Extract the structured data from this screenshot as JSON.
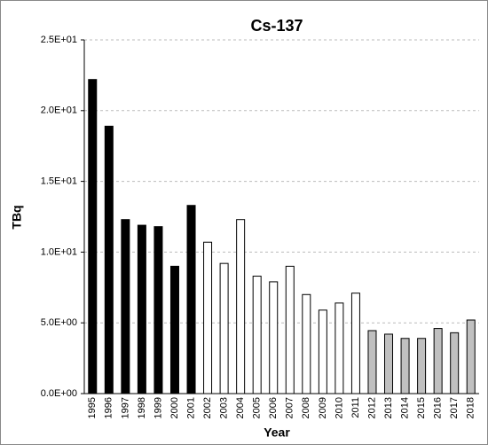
{
  "chart_data": {
    "type": "bar",
    "title": "Cs-137",
    "x_label": "Year",
    "y_label": "TBq",
    "categories": [
      "1995",
      "1996",
      "1997",
      "1998",
      "1999",
      "2000",
      "2001",
      "2002",
      "2003",
      "2004",
      "2005",
      "2006",
      "2007",
      "2008",
      "2009",
      "2010",
      "2011",
      "2012",
      "2013",
      "2014",
      "2015",
      "2016",
      "2017",
      "2018"
    ],
    "values": [
      22.2,
      18.9,
      12.3,
      11.9,
      11.8,
      9.0,
      13.3,
      10.7,
      9.2,
      12.3,
      8.3,
      7.9,
      9.0,
      7.0,
      5.9,
      6.4,
      7.1,
      4.45,
      4.2,
      3.9,
      3.9,
      4.6,
      4.3,
      5.2
    ],
    "colors": [
      "#000000",
      "#000000",
      "#000000",
      "#000000",
      "#000000",
      "#000000",
      "#000000",
      "#ffffff",
      "#ffffff",
      "#ffffff",
      "#ffffff",
      "#ffffff",
      "#ffffff",
      "#ffffff",
      "#ffffff",
      "#ffffff",
      "#ffffff",
      "#c0c0c0",
      "#c0c0c0",
      "#c0c0c0",
      "#c0c0c0",
      "#c0c0c0",
      "#c0c0c0",
      "#c0c0c0"
    ],
    "ylim": [
      0,
      25
    ],
    "yticks": [
      {
        "value": 0,
        "label": "0.0E+00"
      },
      {
        "value": 5,
        "label": "5.0E+00"
      },
      {
        "value": 10,
        "label": "1.0E+01"
      },
      {
        "value": 15,
        "label": "1.5E+01"
      },
      {
        "value": 20,
        "label": "2.0E+01"
      },
      {
        "value": 25,
        "label": "2.5E+01"
      }
    ],
    "grid": true
  }
}
